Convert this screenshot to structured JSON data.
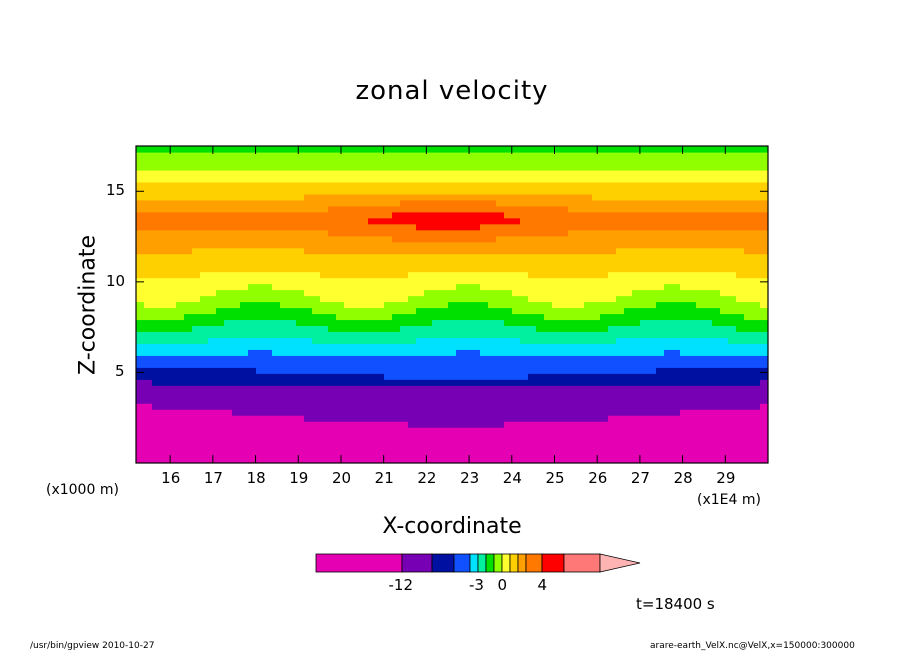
{
  "chart_data": {
    "type": "heatmap",
    "title": "zonal velocity",
    "xlabel": "X-coordinate",
    "ylabel": "Z-coordinate",
    "x_unit_note": "(x1E4 m)",
    "y_unit_note": "(x1000 m)",
    "xlim": [
      15.2,
      30.0
    ],
    "ylim": [
      0.0,
      17.5
    ],
    "x_ticks": [
      "16",
      "17",
      "18",
      "19",
      "20",
      "21",
      "22",
      "23",
      "24",
      "25",
      "26",
      "27",
      "28",
      "29"
    ],
    "y_ticks": [
      "5",
      "10",
      "15"
    ],
    "colorbar": {
      "levels": [
        -16,
        -12,
        -8,
        -6,
        -4,
        -3,
        -2,
        -1,
        0,
        1,
        2,
        3,
        4,
        6,
        8
      ],
      "colors": [
        "#e600b4",
        "#7800b4",
        "#0010a0",
        "#1050ff",
        "#00e0ff",
        "#00f0a0",
        "#00e000",
        "#90ff00",
        "#ffff30",
        "#ffd000",
        "#ffa000",
        "#ff7800",
        "#ff0000",
        "#ff7878",
        "#ffb4b4"
      ],
      "labels": [
        "-12",
        "-3",
        "0",
        "4"
      ],
      "label_values": [
        -12,
        -3,
        0,
        4
      ]
    },
    "field_description": "u(x,z): strongly negative near surface, increasing with height; positive maximum near z=13-14 km around x=20-25",
    "time_label": "t=18400 s"
  },
  "footer": {
    "left": "/usr/bin/gpview   2010-10-27",
    "right": "arare-earth_VelX.nc@VelX,x=150000:300000"
  }
}
